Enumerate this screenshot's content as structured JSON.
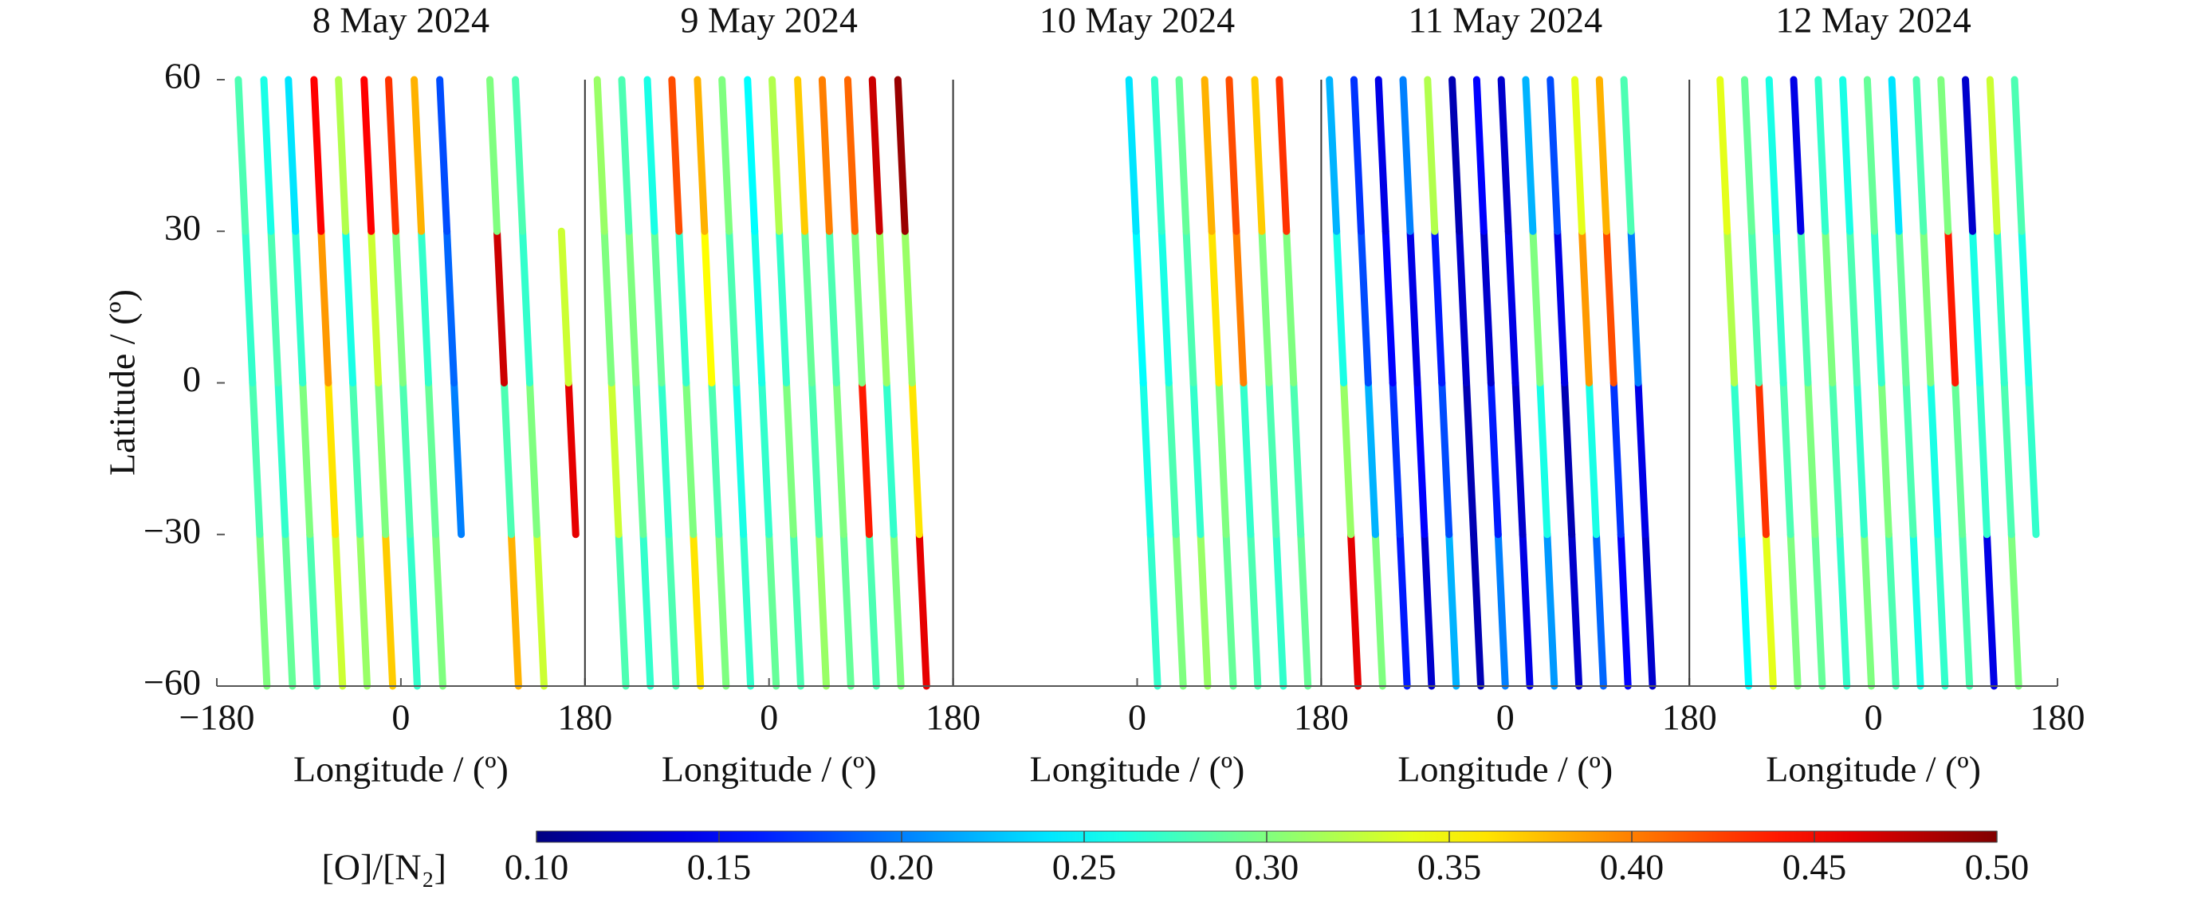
{
  "chart_data": {
    "type": "track",
    "ylabel": "Latitude / (º)",
    "ylim": [
      -60,
      60
    ],
    "yticks": [
      {
        "value": -60,
        "label": "−60"
      },
      {
        "value": -30,
        "label": "−30"
      },
      0,
      30,
      60
    ],
    "colorbar": {
      "label": "[O]/[N₂]",
      "clim": [
        0.1,
        0.5
      ],
      "ticks": [
        {
          "value": 0.1,
          "label": "0.10"
        },
        {
          "value": 0.15,
          "label": "0.15"
        },
        {
          "value": 0.2,
          "label": "0.20"
        },
        {
          "value": 0.25,
          "label": "0.25"
        },
        {
          "value": 0.3,
          "label": "0.30"
        },
        {
          "value": 0.35,
          "label": "0.35"
        },
        {
          "value": 0.4,
          "label": "0.40"
        },
        {
          "value": 0.45,
          "label": "0.45"
        },
        {
          "value": 0.5,
          "label": "0.50"
        }
      ]
    },
    "panels": [
      {
        "title": "8 May 2024",
        "xlabel": "Longitude / (º)",
        "xlim": [
          -180,
          180
        ],
        "xticks": [
          {
            "value": -180,
            "label": "−180"
          },
          0,
          180
        ],
        "tracks": [
          {
            "lon": -159,
            "values": [
              0.3,
              0.28,
              0.27,
              0.28
            ]
          },
          {
            "lon": -134,
            "values": [
              0.29,
              0.27,
              0.28,
              0.26
            ]
          },
          {
            "lon": -110,
            "values": [
              0.28,
              0.3,
              0.27,
              0.24
            ]
          },
          {
            "lon": -85,
            "values": [
              0.33,
              0.36,
              0.39,
              0.45
            ]
          },
          {
            "lon": -61,
            "values": [
              0.31,
              0.28,
              0.26,
              0.32
            ]
          },
          {
            "lon": -36,
            "values": [
              0.37,
              0.3,
              0.33,
              0.45
            ]
          },
          {
            "lon": -12,
            "values": [
              0.27,
              0.28,
              0.3,
              0.43
            ]
          },
          {
            "lon": 13,
            "values": [
              0.3,
              0.29,
              0.27,
              0.38
            ]
          },
          {
            "lon": 38,
            "values": [
              null,
              0.2,
              0.19,
              0.18
            ]
          },
          {
            "lon": 87,
            "values": [
              0.38,
              0.28,
              0.47,
              0.3
            ]
          },
          {
            "lon": 112,
            "values": [
              0.33,
              0.3,
              0.27,
              0.28
            ]
          },
          {
            "lon": 150,
            "values": [
              null,
              0.46,
              0.33,
              null
            ]
          }
        ]
      },
      {
        "title": "9 May 2024",
        "xlabel": "Longitude / (º)",
        "xlim": [
          -180,
          180
        ],
        "xticks": [
          0,
          180
        ],
        "tracks": [
          {
            "lon": -168,
            "values": [
              0.28,
              0.33,
              0.3,
              0.31
            ]
          },
          {
            "lon": -144,
            "values": [
              0.27,
              0.29,
              0.3,
              0.28
            ]
          },
          {
            "lon": -119,
            "values": [
              0.28,
              0.27,
              0.29,
              0.26
            ]
          },
          {
            "lon": -95,
            "values": [
              0.36,
              0.3,
              0.27,
              0.42
            ]
          },
          {
            "lon": -70,
            "values": [
              0.3,
              0.28,
              0.35,
              0.38
            ]
          },
          {
            "lon": -46,
            "values": [
              0.27,
              0.26,
              0.28,
              0.3
            ]
          },
          {
            "lon": -21,
            "values": [
              0.29,
              0.27,
              0.26,
              0.25
            ]
          },
          {
            "lon": 3,
            "values": [
              0.28,
              0.3,
              0.27,
              0.32
            ]
          },
          {
            "lon": 28,
            "values": [
              0.31,
              0.28,
              0.29,
              0.37
            ]
          },
          {
            "lon": 52,
            "values": [
              0.29,
              0.3,
              0.28,
              0.4
            ]
          },
          {
            "lon": 77,
            "values": [
              0.28,
              0.44,
              0.3,
              0.41
            ]
          },
          {
            "lon": 101,
            "values": [
              0.3,
              0.27,
              0.31,
              0.47
            ]
          },
          {
            "lon": 126,
            "values": [
              0.46,
              0.36,
              0.31,
              0.49
            ]
          }
        ]
      },
      {
        "title": "10 May 2024",
        "xlabel": "Longitude / (º)",
        "xlim": [
          -180,
          180
        ],
        "xticks": [
          0,
          180
        ],
        "tracks": [
          {
            "lon": -8,
            "values": [
              0.27,
              0.26,
              0.25,
              0.24
            ]
          },
          {
            "lon": 17,
            "values": [
              0.3,
              0.28,
              0.26,
              0.27
            ]
          },
          {
            "lon": 41,
            "values": [
              0.31,
              0.27,
              0.28,
              0.29
            ]
          },
          {
            "lon": 66,
            "values": [
              0.29,
              0.3,
              0.36,
              0.38
            ]
          },
          {
            "lon": 90,
            "values": [
              0.28,
              0.27,
              0.4,
              0.42
            ]
          },
          {
            "lon": 115,
            "values": [
              0.27,
              0.28,
              0.3,
              0.37
            ]
          },
          {
            "lon": 139,
            "values": [
              0.29,
              0.28,
              0.3,
              0.43
            ]
          }
        ]
      },
      {
        "title": "11 May 2024",
        "xlabel": "Longitude / (º)",
        "xlim": [
          -180,
          180
        ],
        "xticks": [
          0,
          180
        ],
        "tracks": [
          {
            "lon": -172,
            "values": [
              0.46,
              0.31,
              0.26,
              0.22
            ]
          },
          {
            "lon": -148,
            "values": [
              0.3,
              0.22,
              0.18,
              0.17
            ]
          },
          {
            "lon": -124,
            "values": [
              0.16,
              0.17,
              0.15,
              0.14
            ]
          },
          {
            "lon": -100,
            "values": [
              0.13,
              0.15,
              0.14,
              0.2
            ]
          },
          {
            "lon": -76,
            "values": [
              0.22,
              0.18,
              0.16,
              0.32
            ]
          },
          {
            "lon": -52,
            "values": [
              0.12,
              0.12,
              0.13,
              0.12
            ]
          },
          {
            "lon": -28,
            "values": [
              0.2,
              0.16,
              0.13,
              0.15
            ]
          },
          {
            "lon": -4,
            "values": [
              0.14,
              0.13,
              0.14,
              0.13
            ]
          },
          {
            "lon": 20,
            "values": [
              0.21,
              0.26,
              0.3,
              0.22
            ]
          },
          {
            "lon": 44,
            "values": [
              0.13,
              0.12,
              0.14,
              0.18
            ]
          },
          {
            "lon": 68,
            "values": [
              0.19,
              0.26,
              0.39,
              0.34
            ]
          },
          {
            "lon": 92,
            "values": [
              0.15,
              0.17,
              0.42,
              0.38
            ]
          },
          {
            "lon": 116,
            "values": [
              0.13,
              0.14,
              0.2,
              0.28
            ]
          }
        ]
      },
      {
        "title": "12 May 2024",
        "xlabel": "Longitude / (º)",
        "xlim": [
          -180,
          180
        ],
        "xticks": [
          0,
          180
        ],
        "tracks": [
          {
            "lon": -150,
            "values": [
              0.25,
              0.27,
              0.32,
              0.34
            ]
          },
          {
            "lon": -126,
            "values": [
              0.34,
              0.43,
              0.28,
              0.29
            ]
          },
          {
            "lon": -102,
            "values": [
              0.3,
              0.28,
              0.27,
              0.26
            ]
          },
          {
            "lon": -78,
            "values": [
              0.29,
              0.3,
              0.28,
              0.14
            ]
          },
          {
            "lon": -54,
            "values": [
              0.27,
              0.28,
              0.3,
              0.27
            ]
          },
          {
            "lon": -30,
            "values": [
              0.3,
              0.27,
              0.28,
              0.26
            ]
          },
          {
            "lon": -6,
            "values": [
              0.28,
              0.3,
              0.27,
              0.29
            ]
          },
          {
            "lon": 18,
            "values": [
              0.26,
              0.28,
              0.29,
              0.24
            ]
          },
          {
            "lon": 42,
            "values": [
              0.27,
              0.26,
              0.3,
              0.28
            ]
          },
          {
            "lon": 66,
            "values": [
              0.28,
              0.29,
              0.44,
              0.3
            ]
          },
          {
            "lon": 90,
            "values": [
              0.14,
              0.27,
              0.26,
              0.13
            ]
          },
          {
            "lon": 114,
            "values": [
              0.3,
              0.28,
              0.27,
              0.33
            ]
          },
          {
            "lon": 138,
            "values": [
              null,
              0.27,
              0.26,
              0.28
            ]
          }
        ]
      }
    ]
  }
}
